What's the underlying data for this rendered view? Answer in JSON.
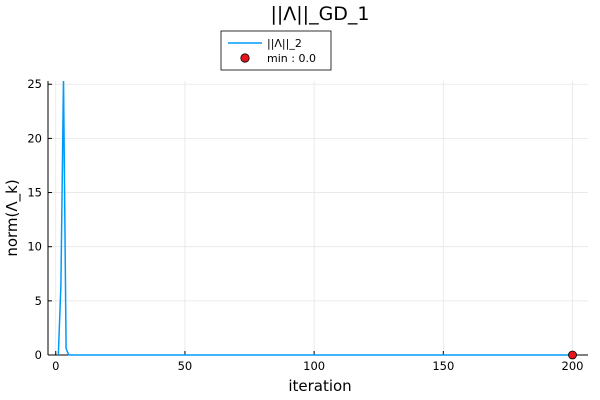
{
  "chart_data": {
    "type": "line",
    "title": "||Λ||_GD_1",
    "xlabel": "iteration",
    "ylabel": "norm(Λ_k)",
    "xlim": [
      -3,
      206
    ],
    "ylim": [
      0,
      25.3
    ],
    "xticks": [
      0,
      50,
      100,
      150,
      200
    ],
    "yticks": [
      0,
      5,
      10,
      15,
      20,
      25
    ],
    "grid": true,
    "legend_position": "top-center, outside plot",
    "series": [
      {
        "name": "||Λ||_2",
        "color": "#009af9",
        "x": [
          1,
          2,
          3,
          4,
          5,
          6,
          10,
          50,
          100,
          150,
          200
        ],
        "y": [
          0,
          6.5,
          25.5,
          0.6,
          0.02,
          0,
          0,
          0,
          0,
          0,
          0
        ]
      }
    ],
    "markers": [
      {
        "name": "min : 0.0",
        "color": "#e26f46",
        "fill": "#e8141b",
        "x": 200,
        "y": 0
      }
    ]
  }
}
